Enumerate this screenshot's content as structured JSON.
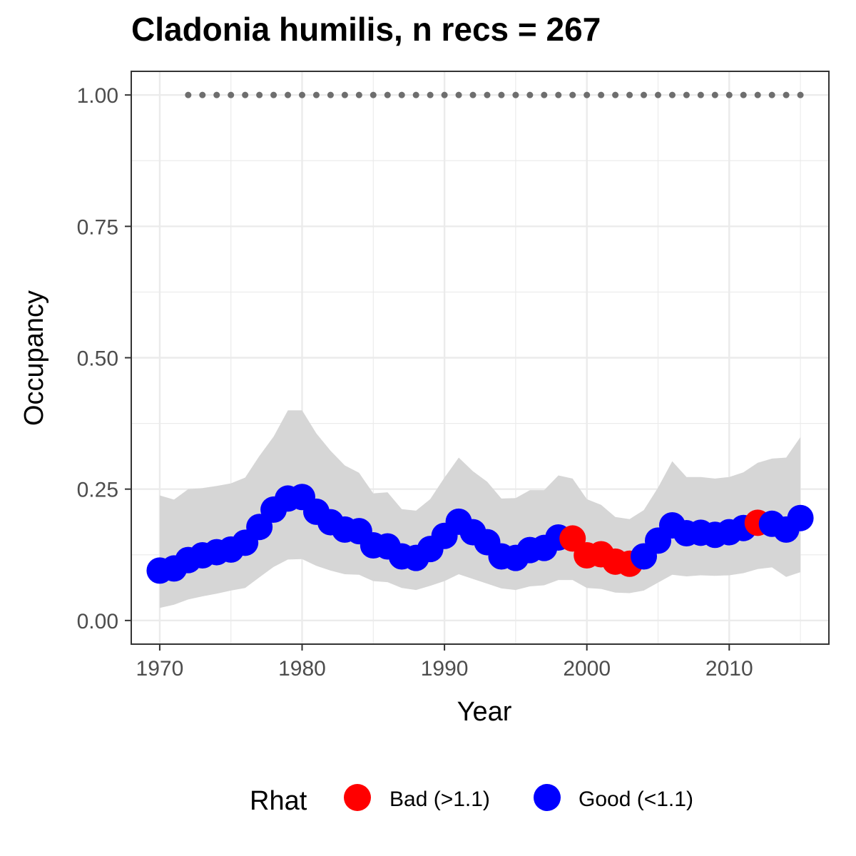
{
  "chart_data": {
    "type": "line",
    "title": "Cladonia humilis, n recs = 267",
    "xlabel": "Year",
    "ylabel": "Occupancy",
    "xlim": [
      1968,
      2017
    ],
    "ylim": [
      -0.045,
      1.045
    ],
    "x_ticks": [
      "1970",
      "1980",
      "1990",
      "2000",
      "2010"
    ],
    "y_ticks": [
      "0.00",
      "0.25",
      "0.50",
      "0.75",
      "1.00"
    ],
    "grid": true,
    "legend": {
      "title": "Rhat",
      "position": "bottom",
      "entries": [
        {
          "label": "Bad (>1.1)",
          "color": "#ff0000"
        },
        {
          "label": "Good (<1.1)",
          "color": "#0000ff"
        }
      ]
    },
    "x": [
      1970,
      1971,
      1972,
      1973,
      1974,
      1975,
      1976,
      1977,
      1978,
      1979,
      1980,
      1981,
      1982,
      1983,
      1984,
      1985,
      1986,
      1987,
      1988,
      1989,
      1990,
      1991,
      1992,
      1993,
      1994,
      1995,
      1996,
      1997,
      1998,
      1999,
      2000,
      2001,
      2002,
      2003,
      2004,
      2005,
      2006,
      2007,
      2008,
      2009,
      2010,
      2011,
      2012,
      2013,
      2014,
      2015
    ],
    "series": [
      {
        "name": "Occupancy",
        "values": [
          0.095,
          0.099,
          0.115,
          0.124,
          0.13,
          0.135,
          0.148,
          0.178,
          0.211,
          0.232,
          0.235,
          0.207,
          0.187,
          0.173,
          0.17,
          0.143,
          0.141,
          0.122,
          0.119,
          0.136,
          0.161,
          0.188,
          0.168,
          0.149,
          0.122,
          0.119,
          0.134,
          0.138,
          0.158,
          0.156,
          0.124,
          0.126,
          0.112,
          0.108,
          0.122,
          0.152,
          0.181,
          0.166,
          0.167,
          0.163,
          0.168,
          0.176,
          0.186,
          0.184,
          0.173,
          0.195
        ],
        "rhat": [
          "Good",
          "Good",
          "Good",
          "Good",
          "Good",
          "Good",
          "Good",
          "Good",
          "Good",
          "Good",
          "Good",
          "Good",
          "Good",
          "Good",
          "Good",
          "Good",
          "Good",
          "Good",
          "Good",
          "Good",
          "Good",
          "Good",
          "Good",
          "Good",
          "Good",
          "Good",
          "Good",
          "Good",
          "Good",
          "Bad",
          "Bad",
          "Bad",
          "Bad",
          "Bad",
          "Good",
          "Good",
          "Good",
          "Good",
          "Good",
          "Good",
          "Good",
          "Good",
          "Bad",
          "Good",
          "Good",
          "Good"
        ],
        "lower": [
          0.024,
          0.03,
          0.04,
          0.046,
          0.051,
          0.057,
          0.062,
          0.082,
          0.102,
          0.116,
          0.117,
          0.104,
          0.095,
          0.088,
          0.087,
          0.075,
          0.073,
          0.062,
          0.058,
          0.066,
          0.075,
          0.088,
          0.079,
          0.07,
          0.061,
          0.058,
          0.065,
          0.067,
          0.077,
          0.077,
          0.062,
          0.06,
          0.053,
          0.052,
          0.057,
          0.072,
          0.087,
          0.084,
          0.086,
          0.085,
          0.086,
          0.09,
          0.098,
          0.101,
          0.083,
          0.092
        ],
        "upper": [
          0.238,
          0.23,
          0.25,
          0.252,
          0.256,
          0.261,
          0.272,
          0.313,
          0.35,
          0.4,
          0.4,
          0.356,
          0.323,
          0.295,
          0.281,
          0.242,
          0.244,
          0.212,
          0.209,
          0.231,
          0.272,
          0.31,
          0.284,
          0.264,
          0.232,
          0.233,
          0.248,
          0.248,
          0.276,
          0.27,
          0.231,
          0.22,
          0.197,
          0.193,
          0.21,
          0.253,
          0.303,
          0.273,
          0.273,
          0.27,
          0.273,
          0.282,
          0.3,
          0.308,
          0.31,
          0.349
        ]
      }
    ],
    "rug": {
      "y": 1.0,
      "x": [
        1972,
        1973,
        1974,
        1975,
        1976,
        1977,
        1978,
        1979,
        1980,
        1981,
        1982,
        1983,
        1984,
        1985,
        1986,
        1987,
        1988,
        1989,
        1990,
        1991,
        1992,
        1993,
        1994,
        1995,
        1996,
        1997,
        1998,
        1999,
        2000,
        2001,
        2002,
        2003,
        2004,
        2005,
        2006,
        2007,
        2008,
        2009,
        2010,
        2011,
        2012,
        2013,
        2014,
        2015
      ]
    },
    "colors": {
      "Bad": "#ff0000",
      "Good": "#0000ff",
      "ribbon": "#d6d6d6",
      "rug": "#6e6e6e",
      "grid": "#ebebeb",
      "panel_border": "#333333"
    }
  }
}
